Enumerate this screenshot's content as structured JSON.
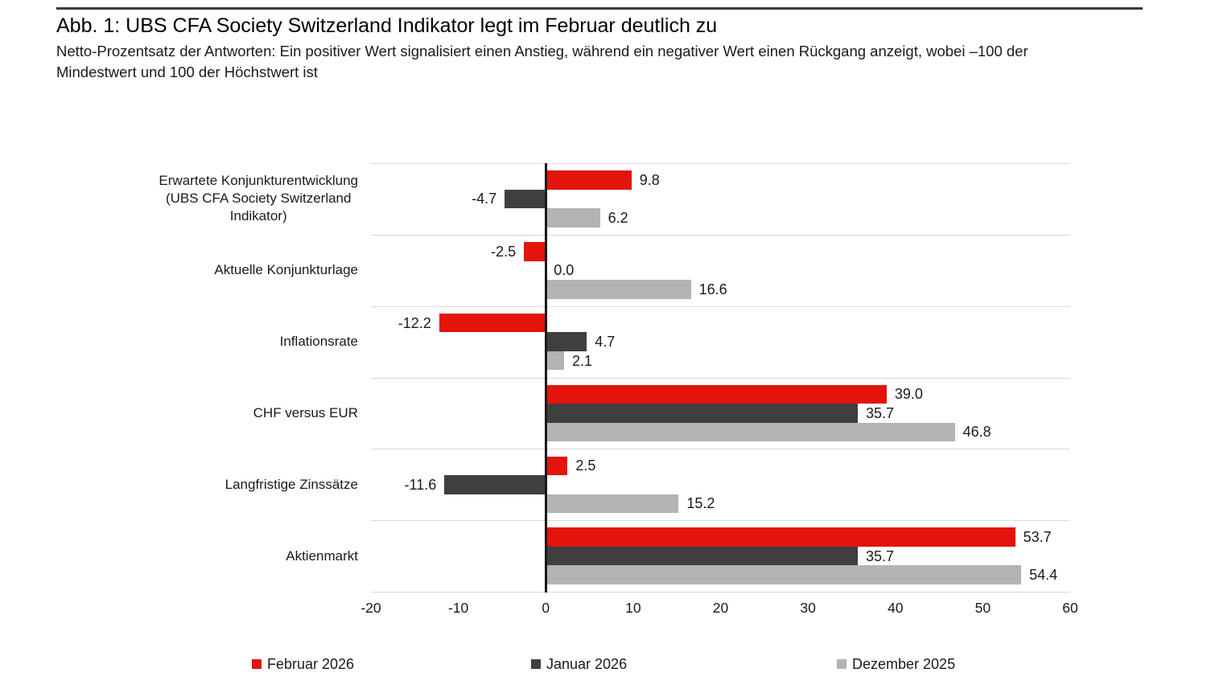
{
  "header": {
    "title": "Abb. 1: UBS CFA Society Switzerland Indikator legt im Februar deutlich zu",
    "subtitle": "Netto-Prozentsatz der Antworten: Ein positiver Wert signalisiert einen Anstieg, während ein negativer Wert einen Rückgang anzeigt, wobei –100 der\nMindestwert und 100 der Höchstwert ist"
  },
  "chart_data": {
    "type": "bar",
    "orientation": "horizontal",
    "categories": [
      "Erwartete Konjunkturentwicklung\n(UBS CFA Society Switzerland\nIndikator)",
      "Aktuelle Konjunkturlage",
      "Inflationsrate",
      "CHF versus EUR",
      "Langfristige Zinssätze",
      "Aktienmarkt"
    ],
    "series": [
      {
        "name": "Februar 2026",
        "color": "#e3140c",
        "values": [
          9.8,
          -2.5,
          -12.2,
          39.0,
          2.5,
          53.7
        ]
      },
      {
        "name": "Januar 2026",
        "color": "#3f3f3f",
        "values": [
          -4.7,
          0.0,
          4.7,
          35.7,
          -11.6,
          35.7
        ]
      },
      {
        "name": "Dezember 2025",
        "color": "#b3b3b3",
        "values": [
          6.2,
          16.6,
          2.1,
          46.8,
          15.2,
          54.4
        ]
      }
    ],
    "value_decimals": 1,
    "xlim": [
      -20,
      60
    ],
    "xticks": [
      -20,
      -10,
      0,
      10,
      20,
      30,
      40,
      50,
      60
    ],
    "grid": "horizontal category separators",
    "legend_position": "bottom",
    "colors": {
      "separator": "#d9d9d9",
      "axis": "#1a1a1a",
      "text": "#1a1a1a"
    }
  }
}
